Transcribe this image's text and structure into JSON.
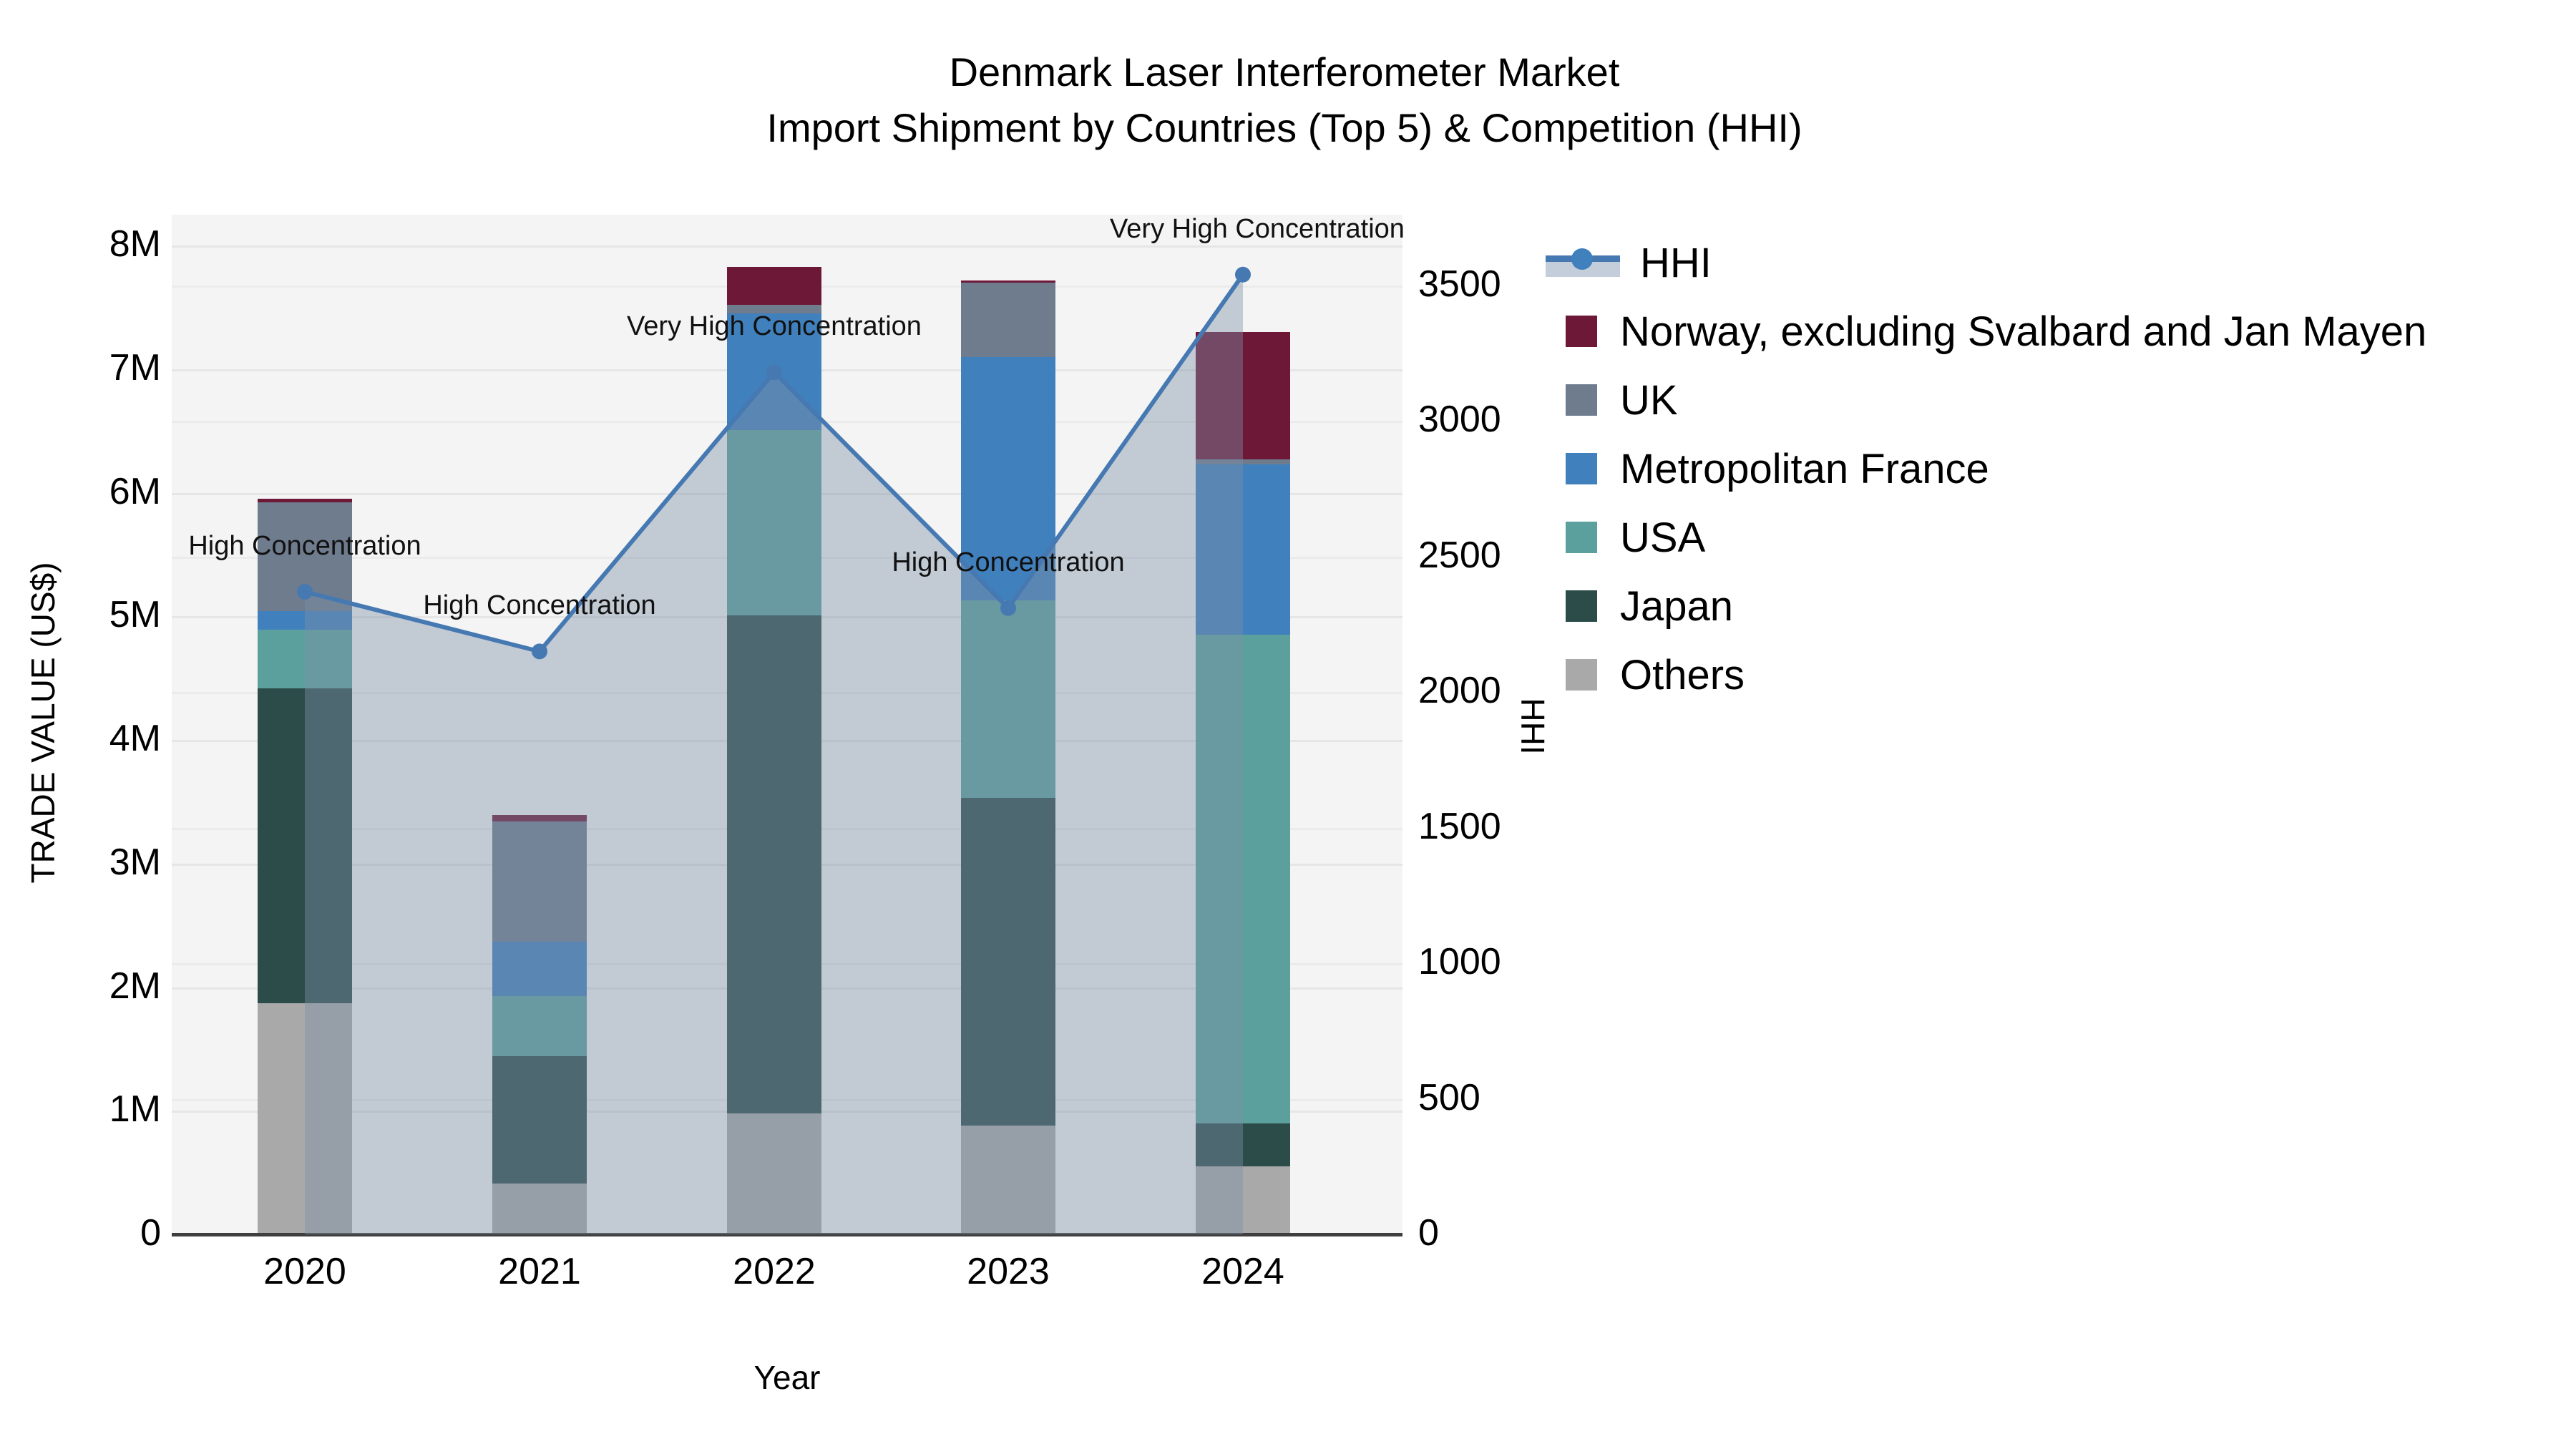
{
  "title": {
    "line1": "Denmark Laser Interferometer Market",
    "line2": "Import Shipment by Countries (Top 5) & Competition (HHI)"
  },
  "axes": {
    "x_label": "Year",
    "y_left_label": "TRADE VALUE (US$)",
    "y_right_label": "HHI",
    "y_left_ticks": [
      {
        "label": "0",
        "value": 0
      },
      {
        "label": "1M",
        "value": 1
      },
      {
        "label": "2M",
        "value": 2
      },
      {
        "label": "3M",
        "value": 3
      },
      {
        "label": "4M",
        "value": 4
      },
      {
        "label": "5M",
        "value": 5
      },
      {
        "label": "6M",
        "value": 6
      },
      {
        "label": "7M",
        "value": 7
      },
      {
        "label": "8M",
        "value": 8
      }
    ],
    "y_right_ticks": [
      {
        "label": "0",
        "value": 0
      },
      {
        "label": "500",
        "value": 500
      },
      {
        "label": "1000",
        "value": 1000
      },
      {
        "label": "1500",
        "value": 1500
      },
      {
        "label": "2000",
        "value": 2000
      },
      {
        "label": "2500",
        "value": 2500
      },
      {
        "label": "3000",
        "value": 3000
      },
      {
        "label": "3500",
        "value": 3500
      }
    ],
    "y_left_max": 8.25,
    "y_right_max": 3761
  },
  "colors": {
    "norway": "#6e1838",
    "uk": "#6e7c8e",
    "france": "#4080bc",
    "usa": "#5ca09e",
    "japan": "#2c4c49",
    "others": "#a9a9a9",
    "hhi_line": "#4679b2",
    "hhi_fill": "rgba(125,143,168,0.42)",
    "plot_bg": "#f4f4f4",
    "grid": "#e6e6e6",
    "axis_line": "#3f3f3f"
  },
  "legend": {
    "items": [
      {
        "label": "HHI",
        "type": "line",
        "color": "#4679b2"
      },
      {
        "label": "Norway, excluding Svalbard and Jan Mayen",
        "type": "patch",
        "color": "#6e1838"
      },
      {
        "label": "UK",
        "type": "patch",
        "color": "#6e7c8e"
      },
      {
        "label": "Metropolitan France",
        "type": "patch",
        "color": "#4080bc"
      },
      {
        "label": "USA",
        "type": "patch",
        "color": "#5ca09e"
      },
      {
        "label": "Japan",
        "type": "patch",
        "color": "#2c4c49"
      },
      {
        "label": "Others",
        "type": "patch",
        "color": "#a9a9a9"
      }
    ]
  },
  "chart_data": {
    "type": "bar",
    "subtype": "stacked-bars-with-line-area-overlay",
    "categories": [
      "2020",
      "2021",
      "2022",
      "2023",
      "2024"
    ],
    "bar_unit": "millions USD",
    "series": [
      {
        "name": "Others",
        "color_key": "others",
        "values": [
          1.87,
          0.41,
          0.98,
          0.88,
          0.55
        ]
      },
      {
        "name": "Japan",
        "color_key": "japan",
        "values": [
          2.55,
          1.03,
          4.03,
          2.65,
          0.35
        ]
      },
      {
        "name": "USA",
        "color_key": "usa",
        "values": [
          0.47,
          0.49,
          1.5,
          1.6,
          3.95
        ]
      },
      {
        "name": "Metropolitan France",
        "color_key": "france",
        "values": [
          0.15,
          0.44,
          0.94,
          1.97,
          1.38
        ]
      },
      {
        "name": "UK",
        "color_key": "uk",
        "values": [
          0.88,
          0.97,
          0.07,
          0.6,
          0.04
        ]
      },
      {
        "name": "Norway, excluding Svalbard and Jan Mayen",
        "color_key": "norway",
        "values": [
          0.03,
          0.05,
          0.31,
          0.02,
          1.03
        ]
      }
    ],
    "line_series": {
      "name": "HHI",
      "values": [
        2370,
        2150,
        3180,
        2310,
        3540
      ],
      "axis": "right",
      "marker": "circle",
      "area_fill": true
    },
    "annotations": [
      {
        "category": "2020",
        "text": "High Concentration"
      },
      {
        "category": "2021",
        "text": "High Concentration"
      },
      {
        "category": "2022",
        "text": "Very High Concentration"
      },
      {
        "category": "2023",
        "text": "High Concentration"
      },
      {
        "category": "2024",
        "text": "Very High Concentration"
      }
    ],
    "xlabel": "Year",
    "ylabel_left": "TRADE VALUE (US$)",
    "ylabel_right": "HHI",
    "ylim_left": [
      0,
      8.25
    ],
    "ylim_right": [
      0,
      3761
    ],
    "grid": true,
    "legend_position": "outside-right"
  }
}
